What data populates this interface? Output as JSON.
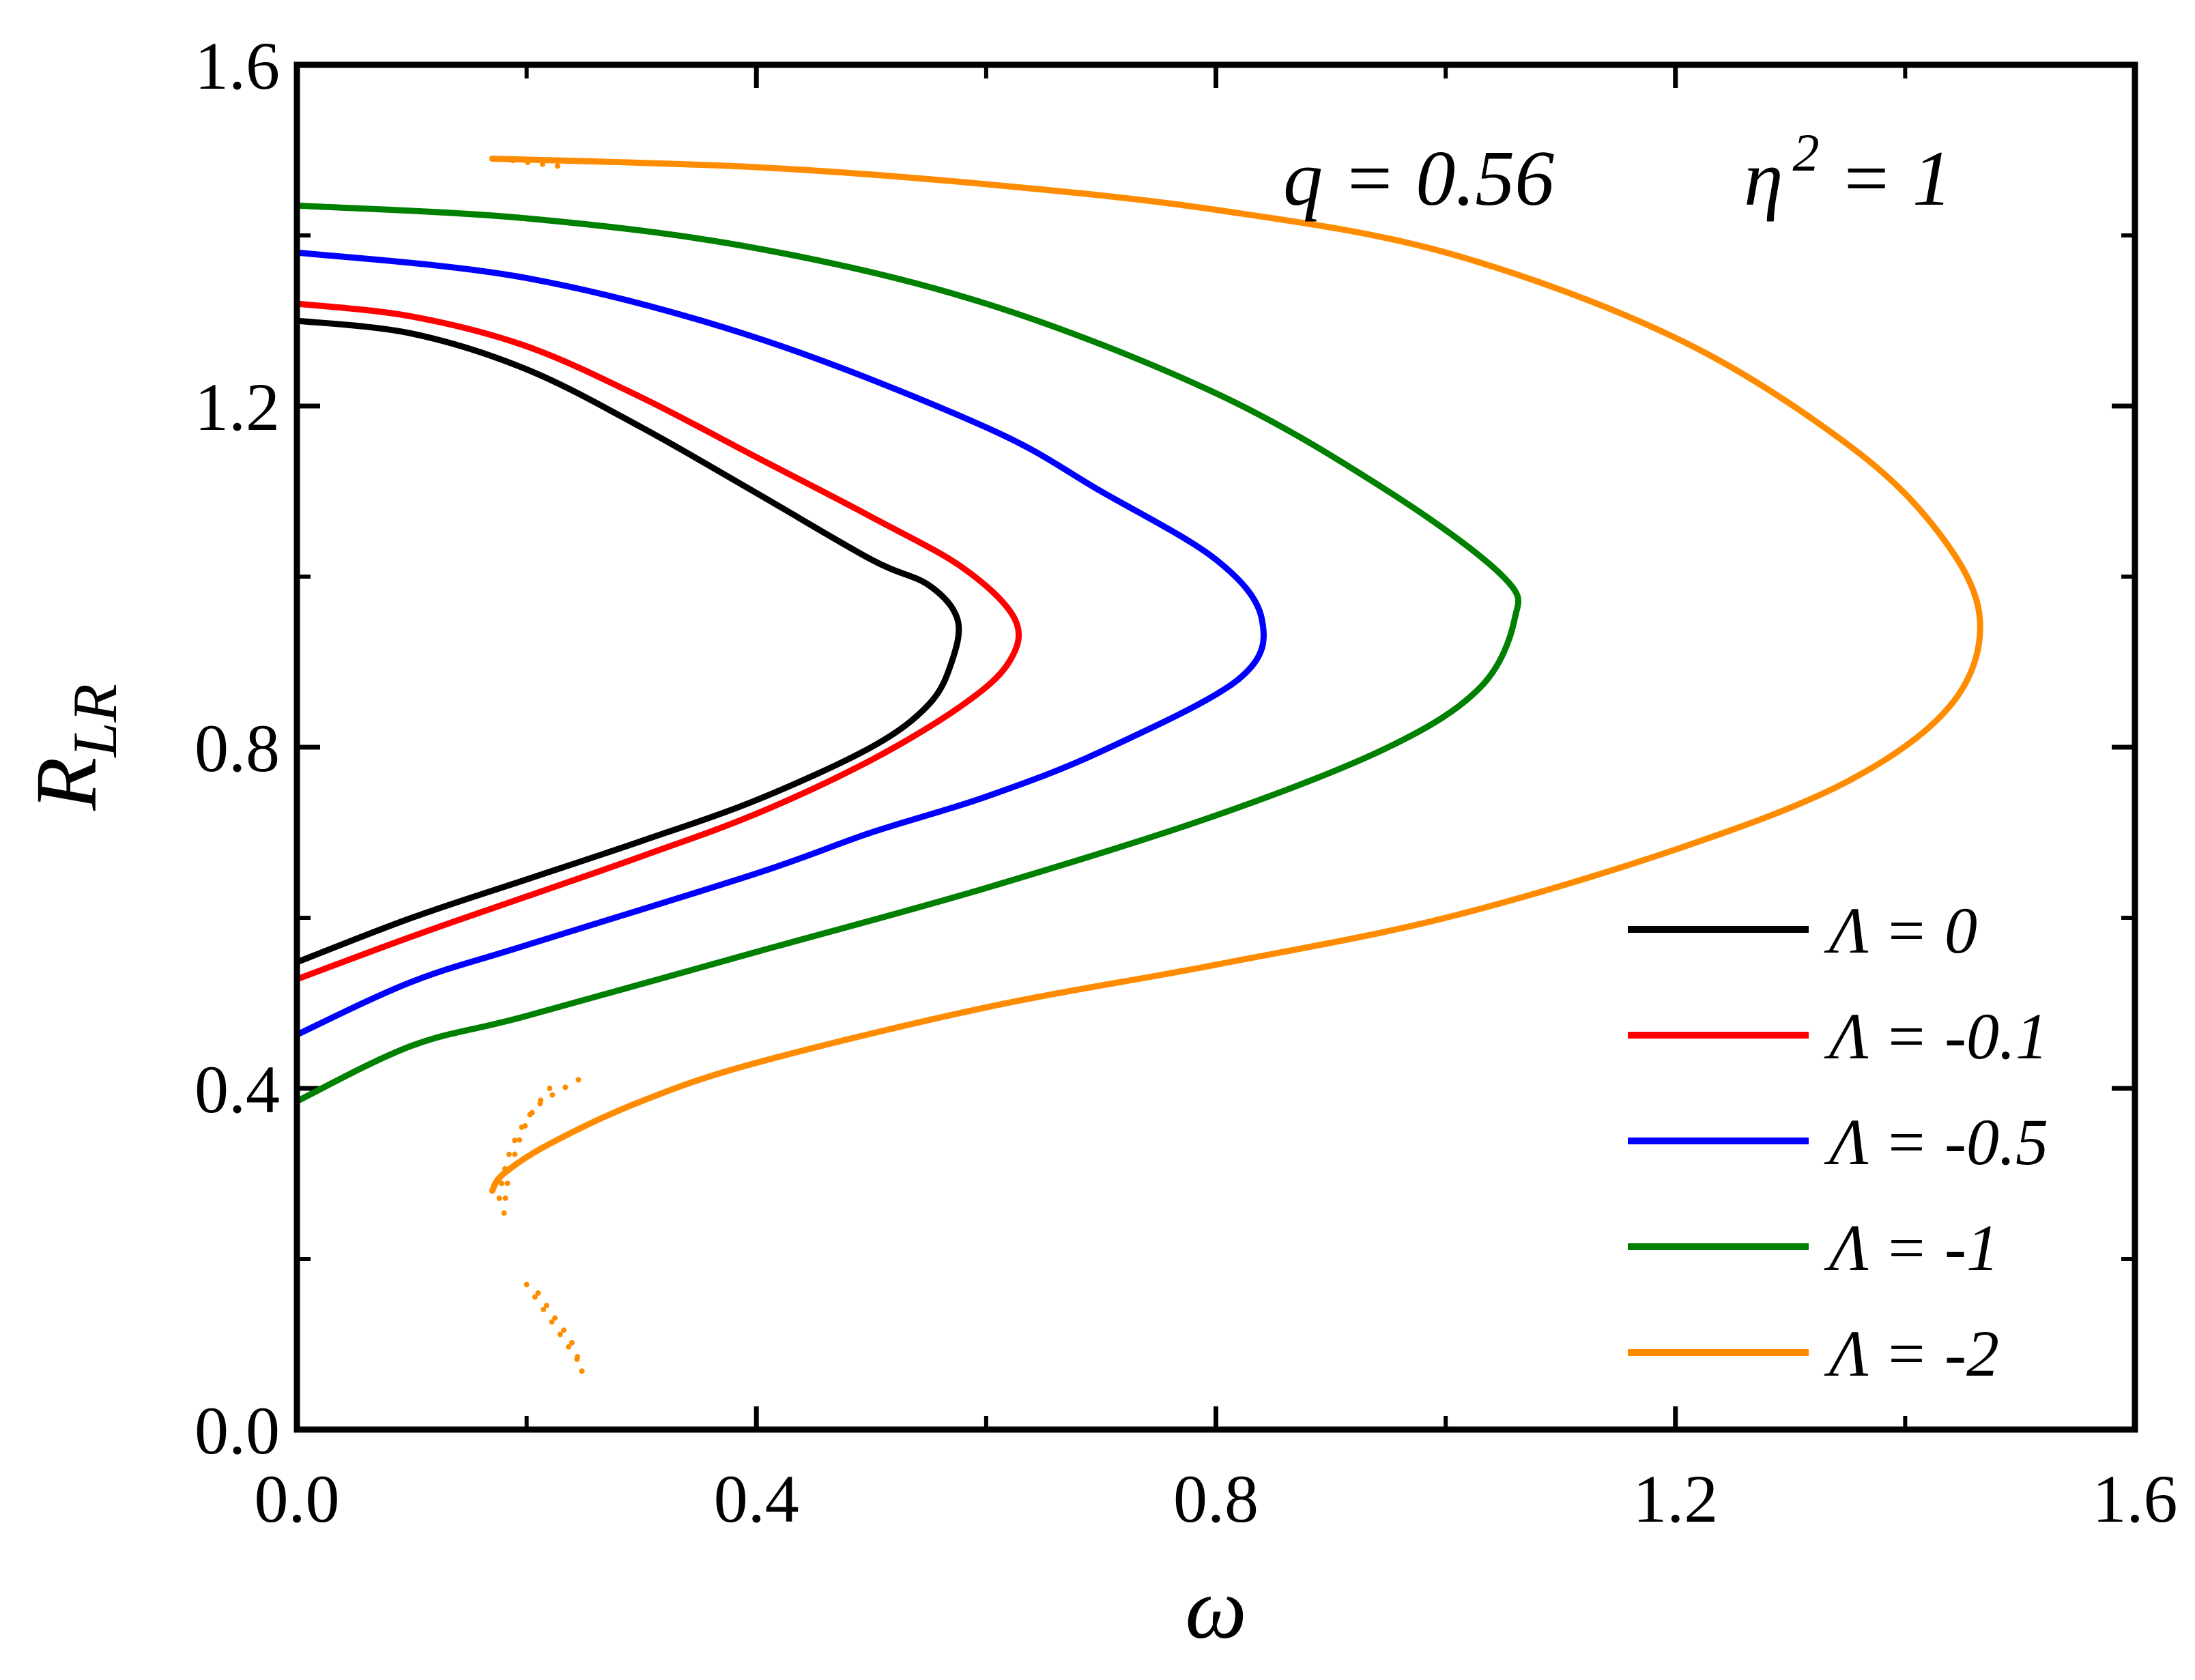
{
  "chart_data": {
    "type": "line",
    "xlabel": "ω",
    "ylabel": {
      "main": "R",
      "sub": "LR"
    },
    "xlim": [
      0,
      1.6
    ],
    "ylim": [
      0,
      1.6
    ],
    "x_major_ticks": [
      0,
      0.4,
      0.8,
      1.2,
      1.6
    ],
    "x_tick_labels": [
      "0.0",
      "0.4",
      "0.8",
      "1.2",
      "1.6"
    ],
    "y_major_ticks": [
      0,
      0.4,
      0.8,
      1.2,
      1.6
    ],
    "y_tick_labels": [
      "0.0",
      "0.4",
      "0.8",
      "1.2",
      "1.6"
    ],
    "grid": false,
    "legend_position": "bottom-right",
    "annotation": {
      "q": "q = 0.56",
      "eta_base": "η",
      "eta_exp": "2",
      "eta_rest": " = 1"
    },
    "series": [
      {
        "name": "Λ = 0",
        "color": "#000000",
        "points": [
          [
            0.0,
            1.3
          ],
          [
            0.1,
            1.285
          ],
          [
            0.2,
            1.243
          ],
          [
            0.3,
            1.175
          ],
          [
            0.4,
            1.098
          ],
          [
            0.5,
            1.02
          ],
          [
            0.55,
            0.99
          ],
          [
            0.575,
            0.95
          ],
          [
            0.57,
            0.9
          ],
          [
            0.55,
            0.85
          ],
          [
            0.5,
            0.8
          ],
          [
            0.4,
            0.738
          ],
          [
            0.3,
            0.69
          ],
          [
            0.2,
            0.645
          ],
          [
            0.1,
            0.6
          ],
          [
            0.0,
            0.548
          ]
        ]
      },
      {
        "name": "Λ = -0.1",
        "color": "#ff0000",
        "points": [
          [
            0.0,
            1.32
          ],
          [
            0.1,
            1.305
          ],
          [
            0.2,
            1.27
          ],
          [
            0.3,
            1.21
          ],
          [
            0.4,
            1.14
          ],
          [
            0.5,
            1.07
          ],
          [
            0.58,
            1.01
          ],
          [
            0.625,
            0.95
          ],
          [
            0.62,
            0.9
          ],
          [
            0.58,
            0.85
          ],
          [
            0.5,
            0.785
          ],
          [
            0.4,
            0.722
          ],
          [
            0.3,
            0.672
          ],
          [
            0.2,
            0.625
          ],
          [
            0.1,
            0.578
          ],
          [
            0.0,
            0.528
          ]
        ]
      },
      {
        "name": "Λ = -0.5",
        "color": "#0000ff",
        "points": [
          [
            0.0,
            1.38
          ],
          [
            0.2,
            1.35
          ],
          [
            0.4,
            1.28
          ],
          [
            0.6,
            1.175
          ],
          [
            0.7,
            1.1
          ],
          [
            0.8,
            1.02
          ],
          [
            0.84,
            0.95
          ],
          [
            0.82,
            0.88
          ],
          [
            0.7,
            0.795
          ],
          [
            0.6,
            0.742
          ],
          [
            0.5,
            0.7
          ],
          [
            0.4,
            0.652
          ],
          [
            0.2,
            0.568
          ],
          [
            0.1,
            0.525
          ],
          [
            0.0,
            0.463
          ]
        ]
      },
      {
        "name": "Λ = -1",
        "color": "#008000",
        "points": [
          [
            0.0,
            1.435
          ],
          [
            0.2,
            1.42
          ],
          [
            0.4,
            1.385
          ],
          [
            0.6,
            1.32
          ],
          [
            0.8,
            1.215
          ],
          [
            0.95,
            1.1
          ],
          [
            1.05,
            1.0
          ],
          [
            1.06,
            0.95
          ],
          [
            1.03,
            0.87
          ],
          [
            0.95,
            0.8
          ],
          [
            0.8,
            0.72
          ],
          [
            0.6,
            0.635
          ],
          [
            0.4,
            0.56
          ],
          [
            0.2,
            0.485
          ],
          [
            0.1,
            0.45
          ],
          [
            0.0,
            0.385
          ]
        ]
      },
      {
        "name": "Λ = -2",
        "color": "#ff8c00",
        "points": [
          [
            0.17,
            1.49
          ],
          [
            0.4,
            1.48
          ],
          [
            0.6,
            1.46
          ],
          [
            0.8,
            1.43
          ],
          [
            1.0,
            1.38
          ],
          [
            1.2,
            1.28
          ],
          [
            1.35,
            1.155
          ],
          [
            1.43,
            1.05
          ],
          [
            1.465,
            0.95
          ],
          [
            1.44,
            0.85
          ],
          [
            1.35,
            0.76
          ],
          [
            1.2,
            0.68
          ],
          [
            1.0,
            0.6
          ],
          [
            0.8,
            0.545
          ],
          [
            0.6,
            0.495
          ],
          [
            0.4,
            0.43
          ],
          [
            0.3,
            0.385
          ],
          [
            0.22,
            0.335
          ],
          [
            0.18,
            0.3
          ],
          [
            0.17,
            0.28
          ]
        ],
        "dotted_segments": [
          [
            [
              0.175,
              1.49
            ],
            [
              0.235,
              1.48
            ]
          ],
          [
            [
              0.245,
              0.41
            ],
            [
              0.21,
              0.38
            ],
            [
              0.19,
              0.34
            ],
            [
              0.18,
              0.3
            ],
            [
              0.175,
              0.26
            ]
          ],
          [
            [
              0.22,
              0.4
            ],
            [
              0.2,
              0.36
            ],
            [
              0.185,
              0.3
            ],
            [
              0.18,
              0.25
            ]
          ],
          [
            [
              0.21,
              0.16
            ],
            [
              0.225,
              0.13
            ],
            [
              0.24,
              0.1
            ],
            [
              0.25,
              0.06
            ]
          ],
          [
            [
              0.2,
              0.17
            ],
            [
              0.215,
              0.14
            ],
            [
              0.23,
              0.11
            ],
            [
              0.245,
              0.08
            ]
          ]
        ]
      }
    ]
  }
}
